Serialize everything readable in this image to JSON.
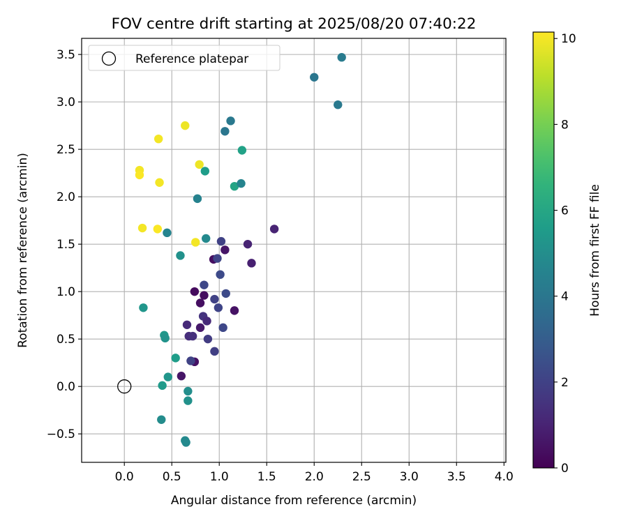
{
  "chart_data": {
    "type": "scatter",
    "title": "FOV centre drift starting at 2025/08/20 07:40:22",
    "xlabel": "Angular distance from reference (arcmin)",
    "ylabel": "Rotation from reference (arcmin)",
    "xlim": [
      -0.45,
      4.02
    ],
    "ylim": [
      -0.8,
      3.67
    ],
    "xticks": [
      0.0,
      0.5,
      1.0,
      1.5,
      2.0,
      2.5,
      3.0,
      3.5,
      4.0
    ],
    "xtick_labels": [
      "0.0",
      "0.5",
      "1.0",
      "1.5",
      "2.0",
      "2.5",
      "3.0",
      "3.5",
      "4.0"
    ],
    "yticks": [
      -0.5,
      0.0,
      0.5,
      1.0,
      1.5,
      2.0,
      2.5,
      3.0,
      3.5
    ],
    "ytick_labels": [
      "−0.5",
      "0.0",
      "0.5",
      "1.0",
      "1.5",
      "2.0",
      "2.5",
      "3.0",
      "3.5"
    ],
    "grid": true,
    "legend_placement": "upper-left",
    "legend": {
      "label": "Reference platepar",
      "marker": "open-circle"
    },
    "reference_point": {
      "x": 0.0,
      "y": 0.0
    },
    "colorbar": {
      "label": "Hours from first FF file",
      "colormap": "viridis",
      "range": [
        0,
        10.15
      ],
      "ticks": [
        0,
        2,
        4,
        6,
        8,
        10
      ],
      "tick_labels": [
        "0",
        "2",
        "4",
        "6",
        "8",
        "10"
      ]
    },
    "points": [
      {
        "x": 0.74,
        "y": 1.0,
        "hours": 0.3
      },
      {
        "x": 0.8,
        "y": 0.88,
        "hours": 0.4
      },
      {
        "x": 0.84,
        "y": 0.96,
        "hours": 0.35
      },
      {
        "x": 0.74,
        "y": 0.26,
        "hours": 0.5
      },
      {
        "x": 0.6,
        "y": 0.11,
        "hours": 0.6
      },
      {
        "x": 0.8,
        "y": 0.62,
        "hours": 0.7
      },
      {
        "x": 0.94,
        "y": 1.34,
        "hours": 0.4
      },
      {
        "x": 1.06,
        "y": 1.44,
        "hours": 0.6
      },
      {
        "x": 1.16,
        "y": 0.8,
        "hours": 0.5
      },
      {
        "x": 1.3,
        "y": 1.5,
        "hours": 1.0
      },
      {
        "x": 1.34,
        "y": 1.3,
        "hours": 0.9
      },
      {
        "x": 1.58,
        "y": 1.66,
        "hours": 1.0
      },
      {
        "x": 0.66,
        "y": 0.65,
        "hours": 1.2
      },
      {
        "x": 0.68,
        "y": 0.53,
        "hours": 1.3
      },
      {
        "x": 0.72,
        "y": 0.53,
        "hours": 1.4
      },
      {
        "x": 0.83,
        "y": 0.74,
        "hours": 1.5
      },
      {
        "x": 0.87,
        "y": 0.69,
        "hours": 1.2
      },
      {
        "x": 0.88,
        "y": 0.5,
        "hours": 1.8
      },
      {
        "x": 0.95,
        "y": 0.37,
        "hours": 1.9
      },
      {
        "x": 0.7,
        "y": 0.27,
        "hours": 2.0
      },
      {
        "x": 0.95,
        "y": 0.92,
        "hours": 2.0
      },
      {
        "x": 0.99,
        "y": 0.83,
        "hours": 2.1
      },
      {
        "x": 1.04,
        "y": 0.62,
        "hours": 2.2
      },
      {
        "x": 1.07,
        "y": 0.98,
        "hours": 2.3
      },
      {
        "x": 0.84,
        "y": 1.07,
        "hours": 2.2
      },
      {
        "x": 1.01,
        "y": 1.18,
        "hours": 2.3
      },
      {
        "x": 0.98,
        "y": 1.35,
        "hours": 2.1
      },
      {
        "x": 1.02,
        "y": 1.53,
        "hours": 2.0
      },
      {
        "x": 0.86,
        "y": 1.56,
        "hours": 4.8
      },
      {
        "x": 0.45,
        "y": 1.62,
        "hours": 4.6
      },
      {
        "x": 0.59,
        "y": 1.38,
        "hours": 5.1
      },
      {
        "x": 0.2,
        "y": 0.83,
        "hours": 5.3
      },
      {
        "x": 0.42,
        "y": 0.54,
        "hours": 5.4
      },
      {
        "x": 0.43,
        "y": 0.51,
        "hours": 5.2
      },
      {
        "x": 0.54,
        "y": 0.3,
        "hours": 5.6
      },
      {
        "x": 0.46,
        "y": 0.1,
        "hours": 5.3
      },
      {
        "x": 0.4,
        "y": 0.01,
        "hours": 5.5
      },
      {
        "x": 0.67,
        "y": -0.05,
        "hours": 5.0
      },
      {
        "x": 0.67,
        "y": -0.15,
        "hours": 5.1
      },
      {
        "x": 0.39,
        "y": -0.35,
        "hours": 4.9
      },
      {
        "x": 0.64,
        "y": -0.57,
        "hours": 4.8
      },
      {
        "x": 0.65,
        "y": -0.59,
        "hours": 4.8
      },
      {
        "x": 0.77,
        "y": 1.98,
        "hours": 4.5
      },
      {
        "x": 0.85,
        "y": 2.27,
        "hours": 5.6
      },
      {
        "x": 1.06,
        "y": 2.69,
        "hours": 4.0
      },
      {
        "x": 1.12,
        "y": 2.8,
        "hours": 4.1
      },
      {
        "x": 1.16,
        "y": 2.11,
        "hours": 5.9
      },
      {
        "x": 1.23,
        "y": 2.14,
        "hours": 4.6
      },
      {
        "x": 1.24,
        "y": 2.49,
        "hours": 5.8
      },
      {
        "x": 2.0,
        "y": 3.26,
        "hours": 4.0
      },
      {
        "x": 2.25,
        "y": 2.97,
        "hours": 4.1
      },
      {
        "x": 2.29,
        "y": 3.47,
        "hours": 4.2
      },
      {
        "x": 0.36,
        "y": 2.61,
        "hours": 10.0
      },
      {
        "x": 0.64,
        "y": 2.75,
        "hours": 9.9
      },
      {
        "x": 0.16,
        "y": 2.28,
        "hours": 10.0
      },
      {
        "x": 0.16,
        "y": 2.23,
        "hours": 10.1
      },
      {
        "x": 0.37,
        "y": 2.15,
        "hours": 10.0
      },
      {
        "x": 0.79,
        "y": 2.34,
        "hours": 9.9
      },
      {
        "x": 0.19,
        "y": 1.67,
        "hours": 10.0
      },
      {
        "x": 0.35,
        "y": 1.66,
        "hours": 10.1
      },
      {
        "x": 0.75,
        "y": 1.52,
        "hours": 10.0
      }
    ]
  }
}
